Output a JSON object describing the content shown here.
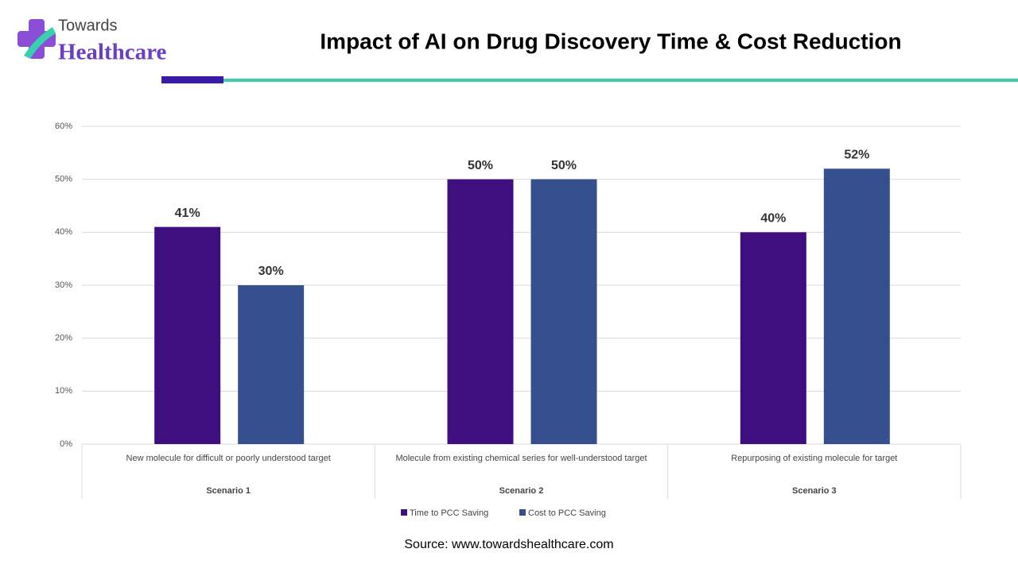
{
  "logo": {
    "line1": "Towards",
    "line2": "Healthcare"
  },
  "chart_data": {
    "type": "bar",
    "title": "Impact of AI on Drug Discovery Time & Cost Reduction",
    "categories": [
      "New molecule for difficult or poorly understood target",
      "Molecule from existing chemical series for well-understood target",
      "Repurposing of existing molecule for target"
    ],
    "category_groups": [
      "Scenario 1",
      "Scenario 2",
      "Scenario 3"
    ],
    "series": [
      {
        "name": "Time to PCC Saving",
        "color": "#3f0f80",
        "values": [
          41,
          50,
          40
        ],
        "value_labels": [
          "41%",
          "50%",
          "40%"
        ]
      },
      {
        "name": "Cost to PCC Saving",
        "color": "#354f8f",
        "values": [
          30,
          50,
          52
        ],
        "value_labels": [
          "30%",
          "50%",
          "52%"
        ]
      }
    ],
    "ylim": [
      0,
      60
    ],
    "yticks": [
      {
        "value": 0,
        "label": "0%"
      },
      {
        "value": 10,
        "label": "10%"
      },
      {
        "value": 20,
        "label": "20%"
      },
      {
        "value": 30,
        "label": "30%"
      },
      {
        "value": 40,
        "label": "40%"
      },
      {
        "value": 50,
        "label": "50%"
      },
      {
        "value": 60,
        "label": "60%"
      }
    ],
    "grid": true,
    "legend": "bottom",
    "source": "Source: www.towardshealthcare.com"
  }
}
